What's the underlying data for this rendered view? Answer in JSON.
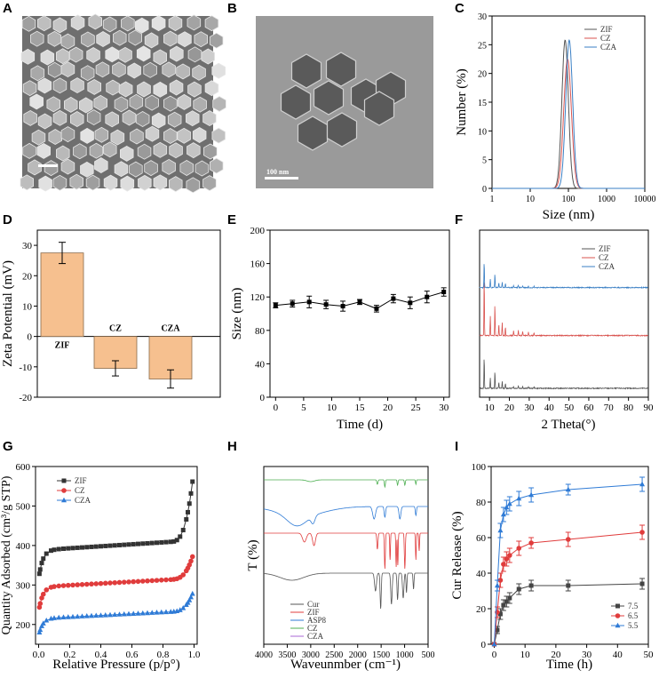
{
  "panel_labels": [
    "A",
    "B",
    "C",
    "D",
    "E",
    "F",
    "G",
    "H",
    "I"
  ],
  "tem_scale_label": "100 nm",
  "chart_data": [
    {
      "id": "C",
      "type": "line",
      "xscale": "log",
      "xlabel": "Size (nm)",
      "ylabel": "Number (%)",
      "xlim": [
        1,
        10000
      ],
      "ylim": [
        0,
        30
      ],
      "xticks": [
        "1",
        "10",
        "100",
        "1000",
        "10000"
      ],
      "yticks": [
        "0",
        "5",
        "10",
        "15",
        "20",
        "25",
        "30"
      ],
      "legend_position": "top-right",
      "series": [
        {
          "name": "ZIF",
          "color": "#555555",
          "peak_x": 82,
          "peak_y": 25.8,
          "width": 0.085
        },
        {
          "name": "CZ",
          "color": "#d9534f",
          "peak_x": 95,
          "peak_y": 22.5,
          "width": 0.1
        },
        {
          "name": "CZA",
          "color": "#3a7fc4",
          "peak_x": 105,
          "peak_y": 25.8,
          "width": 0.09
        }
      ]
    },
    {
      "id": "D",
      "type": "bar",
      "ylabel": "Zeta Potential (mV)",
      "ylim": [
        -20,
        35
      ],
      "yticks": [
        "-20",
        "-10",
        "0",
        "10",
        "20",
        "30"
      ],
      "categories": [
        "ZIF",
        "CZ",
        "CZA"
      ],
      "values": [
        27.5,
        -10.5,
        -14
      ],
      "errors": [
        3.5,
        2.5,
        3.0
      ],
      "bar_color": "#f6c08f"
    },
    {
      "id": "E",
      "type": "line",
      "xlabel": "Time (d)",
      "ylabel": "Size (nm)",
      "xlim": [
        -1,
        31
      ],
      "ylim": [
        0,
        200
      ],
      "xticks": [
        "0",
        "5",
        "10",
        "15",
        "20",
        "25",
        "30"
      ],
      "yticks": [
        "0",
        "40",
        "80",
        "120",
        "160",
        "200"
      ],
      "x": [
        0,
        3,
        6,
        9,
        12,
        15,
        18,
        21,
        24,
        27,
        30
      ],
      "y": [
        110,
        112,
        114,
        111,
        109,
        114,
        106,
        118,
        113,
        120,
        126
      ],
      "err": [
        3,
        4,
        7,
        5,
        6,
        3,
        4,
        5,
        7,
        7,
        5
      ]
    },
    {
      "id": "F",
      "type": "line",
      "xlabel": "2 Theta(°)",
      "xlim": [
        5,
        90
      ],
      "xticks": [
        "10",
        "20",
        "30",
        "40",
        "50",
        "60",
        "70",
        "80",
        "90"
      ],
      "legend_position": "top-right",
      "peaks": [
        7.3,
        10.4,
        12.7,
        14.7,
        16.4,
        18.0,
        22.1,
        24.5,
        26.7,
        29.6,
        32.4
      ],
      "peak_heights": [
        1.0,
        0.33,
        0.55,
        0.2,
        0.22,
        0.15,
        0.08,
        0.1,
        0.07,
        0.06,
        0.05
      ],
      "series": [
        {
          "name": "ZIF",
          "color": "#555555",
          "baseline": 0.0,
          "scale": 0.55
        },
        {
          "name": "CZ",
          "color": "#d9534f",
          "baseline": 0.33,
          "scale": 1.0
        },
        {
          "name": "CZA",
          "color": "#3a7fc4",
          "baseline": 0.63,
          "scale": 0.45
        }
      ]
    },
    {
      "id": "G",
      "type": "line",
      "xlabel": "Relative Pressure (p/p°)",
      "ylabel": "Quantity Adsorbed (cm³/g STP)",
      "xlim": [
        -0.02,
        1.02
      ],
      "ylim": [
        150,
        600
      ],
      "xticks": [
        "0.0",
        "0.2",
        "0.4",
        "0.6",
        "0.8",
        "1.0"
      ],
      "yticks": [
        "200",
        "300",
        "400",
        "500",
        "600"
      ],
      "legend_position": "top-left",
      "series": [
        {
          "name": "ZIF",
          "color": "#333333",
          "marker": "square",
          "y0": 315,
          "plateau": 388,
          "slope": 25,
          "end": 562
        },
        {
          "name": "CZ",
          "color": "#e03c3c",
          "marker": "circle",
          "y0": 232,
          "plateau": 295,
          "slope": 22,
          "end": 372
        },
        {
          "name": "CZA",
          "color": "#2f7bd6",
          "marker": "triangle",
          "y0": 172,
          "plateau": 215,
          "slope": 20,
          "end": 278
        }
      ]
    },
    {
      "id": "H",
      "type": "line",
      "xlabel": "Waveunmber (cm⁻¹)",
      "ylabel": "T (%)",
      "xlim": [
        4000,
        500
      ],
      "xticks": [
        "4000",
        "3500",
        "3000",
        "2500",
        "2000",
        "1500",
        "1000",
        "500"
      ],
      "legend_position": "bottom-left",
      "series": [
        {
          "name": "Cur",
          "color": "#555555"
        },
        {
          "name": "ZIF",
          "color": "#e03c3c"
        },
        {
          "name": "ASP8",
          "color": "#2f7bd6"
        },
        {
          "name": "CZ",
          "color": "#4caf50"
        },
        {
          "name": "CZA",
          "color": "#a867d6"
        }
      ]
    },
    {
      "id": "I",
      "type": "line",
      "xlabel": "Time (h)",
      "ylabel": "Cur Release (%)",
      "xlim": [
        -1,
        50
      ],
      "ylim": [
        0,
        100
      ],
      "xticks": [
        "0",
        "10",
        "20",
        "30",
        "40",
        "50"
      ],
      "yticks": [
        "0",
        "20",
        "40",
        "60",
        "80",
        "100"
      ],
      "legend_position": "bottom-right",
      "x": [
        0,
        1,
        2,
        3,
        4,
        5,
        8,
        12,
        24,
        48
      ],
      "series": [
        {
          "name": "7.5",
          "color": "#444444",
          "marker": "square",
          "values": [
            0,
            8,
            17,
            22,
            24,
            26,
            31,
            33,
            33,
            34
          ],
          "err": [
            0,
            2,
            3,
            3,
            3,
            3,
            3,
            3,
            3,
            3
          ]
        },
        {
          "name": "6.5",
          "color": "#e03c3c",
          "marker": "circle",
          "values": [
            0,
            18,
            36,
            45,
            48,
            50,
            54,
            57,
            59,
            63
          ],
          "err": [
            0,
            3,
            4,
            4,
            4,
            4,
            4,
            3,
            4,
            4
          ]
        },
        {
          "name": "5.5",
          "color": "#2f7bd6",
          "marker": "triangle",
          "values": [
            0,
            33,
            64,
            73,
            77,
            79,
            82,
            84,
            87,
            90
          ],
          "err": [
            0,
            3,
            4,
            4,
            4,
            4,
            4,
            4,
            3,
            4
          ]
        }
      ]
    }
  ]
}
